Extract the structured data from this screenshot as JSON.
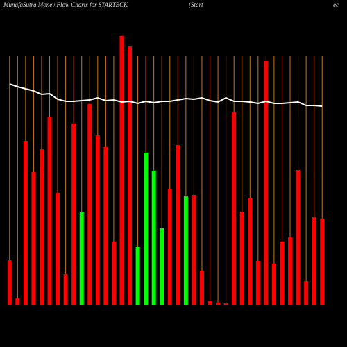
{
  "chart_data": {
    "type": "bar",
    "title": "MunafaSutra  Money Flow  Charts for STARTECK",
    "subtitle": "(Start",
    "subtitle2": "ec",
    "ylim": [
      0,
      400
    ],
    "grid_color": "#c8741a",
    "line_color": "#ffffff",
    "values": [
      65,
      10,
      237,
      192,
      225,
      272,
      162,
      45,
      262,
      135,
      290,
      245,
      228,
      92,
      388,
      373,
      84,
      220,
      194,
      111,
      168,
      231,
      157,
      159,
      50,
      6,
      4,
      3,
      278,
      135,
      155,
      64,
      352,
      60,
      92,
      98,
      195,
      35,
      127,
      125
    ],
    "colors": [
      "#ff0000",
      "#ff0000",
      "#ff0000",
      "#ff0000",
      "#ff0000",
      "#ff0000",
      "#ff0000",
      "#ff0000",
      "#ff0000",
      "#00ff00",
      "#ff0000",
      "#ff0000",
      "#ff0000",
      "#ff0000",
      "#ff0000",
      "#ff0000",
      "#00ff00",
      "#00ff00",
      "#00ff00",
      "#00ff00",
      "#ff0000",
      "#ff0000",
      "#00ff00",
      "#ff0000",
      "#ff0000",
      "#ff0000",
      "#ff0000",
      "#ff0000",
      "#ff0000",
      "#ff0000",
      "#ff0000",
      "#ff0000",
      "#ff0000",
      "#ff0000",
      "#ff0000",
      "#ff0000",
      "#ff0000",
      "#ff0000",
      "#ff0000",
      "#ff0000"
    ],
    "line": [
      319,
      315,
      312,
      309,
      304,
      305,
      297,
      294,
      294,
      295,
      296,
      299,
      295,
      296,
      293,
      294,
      291,
      294,
      292,
      294,
      294,
      296,
      298,
      297,
      299,
      295,
      293,
      299,
      294,
      294,
      293,
      291,
      294,
      291,
      291,
      292,
      293,
      288,
      288,
      287
    ]
  }
}
